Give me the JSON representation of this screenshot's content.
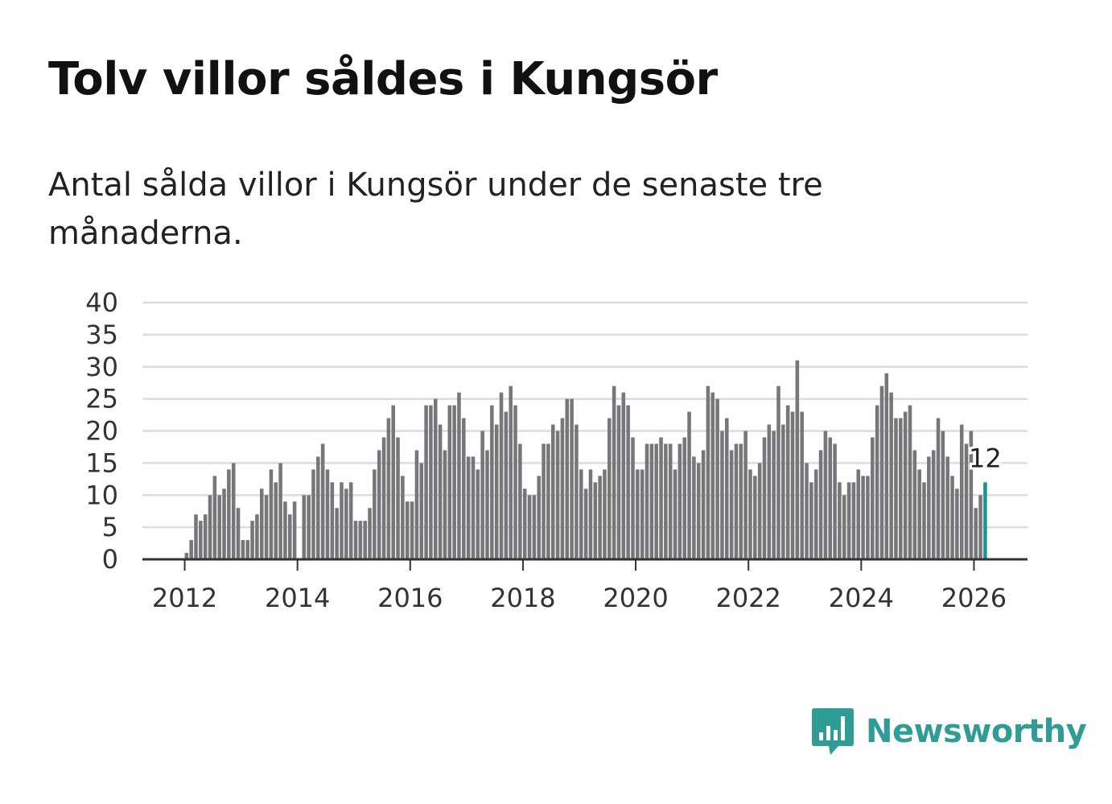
{
  "header": {
    "title": "Tolv villor såldes i Kungsör",
    "subtitle": "Antal sålda villor i Kungsör under de senaste tre månaderna."
  },
  "brand": {
    "name": "Newsworthy",
    "color": "#2f9c95"
  },
  "chart_data": {
    "type": "bar",
    "title": "Tolv villor såldes i Kungsör",
    "xlabel": "",
    "ylabel": "",
    "ylim": [
      0,
      40
    ],
    "yticks": [
      0,
      5,
      10,
      15,
      20,
      25,
      30,
      35,
      40
    ],
    "xlim": [
      2011.25,
      2026.95
    ],
    "xticks": [
      2012,
      2014,
      2016,
      2018,
      2020,
      2022,
      2024,
      2026
    ],
    "x_start": 2012.0,
    "x_step": 0.0833333,
    "bar_color": "#76767b",
    "highlight_color": "#1a9690",
    "highlight_label": "12",
    "grid": true,
    "values": [
      1,
      3,
      7,
      6,
      7,
      10,
      13,
      10,
      11,
      14,
      15,
      8,
      3,
      3,
      6,
      7,
      11,
      10,
      14,
      12,
      15,
      9,
      7,
      9,
      0,
      10,
      10,
      14,
      16,
      18,
      14,
      12,
      8,
      12,
      11,
      12,
      6,
      6,
      6,
      8,
      14,
      17,
      19,
      22,
      24,
      19,
      13,
      9,
      9,
      17,
      15,
      24,
      24,
      25,
      21,
      17,
      24,
      24,
      26,
      22,
      16,
      16,
      14,
      20,
      17,
      24,
      21,
      26,
      23,
      27,
      24,
      18,
      11,
      10,
      10,
      13,
      18,
      18,
      21,
      20,
      22,
      25,
      25,
      21,
      14,
      11,
      14,
      12,
      13,
      14,
      22,
      27,
      24,
      26,
      24,
      19,
      14,
      14,
      18,
      18,
      18,
      19,
      18,
      18,
      14,
      18,
      19,
      23,
      16,
      15,
      17,
      27,
      26,
      25,
      20,
      22,
      17,
      18,
      18,
      20,
      14,
      13,
      15,
      19,
      21,
      20,
      27,
      21,
      24,
      23,
      31,
      23,
      15,
      12,
      14,
      17,
      20,
      19,
      18,
      12,
      10,
      12,
      12,
      14,
      13,
      13,
      19,
      24,
      27,
      29,
      26,
      22,
      22,
      23,
      24,
      17,
      14,
      12,
      16,
      17,
      22,
      20,
      16,
      13,
      11,
      21,
      18,
      20,
      8,
      10,
      12
    ]
  }
}
